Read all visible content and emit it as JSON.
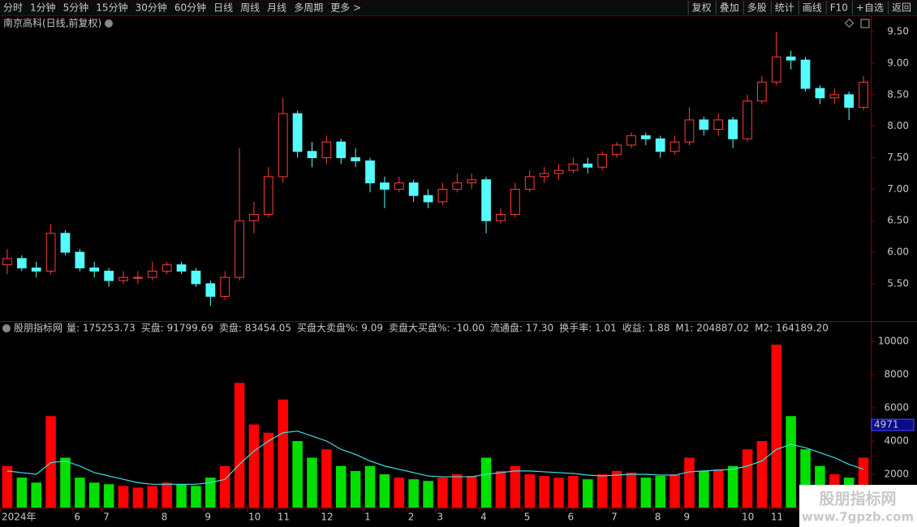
{
  "toolbar": {
    "periods": [
      "分时",
      "1分钟",
      "5分钟",
      "15分钟",
      "30分钟",
      "60分钟",
      "日线",
      "周线",
      "月线",
      "多周期",
      "更多 >"
    ],
    "active_period": 6,
    "tools": [
      "复权",
      "叠加",
      "多股",
      "统计",
      "画线",
      "F10",
      "+自选",
      "返回"
    ]
  },
  "chart_data": [
    {
      "type": "candlestick",
      "title": "南京高科(日线,前复权)",
      "categories": [
        "2024年",
        null,
        null,
        null,
        null,
        "6",
        null,
        "7",
        null,
        null,
        null,
        "8",
        null,
        null,
        "9",
        null,
        null,
        "10",
        null,
        "11",
        null,
        null,
        "12",
        null,
        null,
        "1",
        null,
        null,
        "2",
        null,
        "3",
        null,
        null,
        "4",
        null,
        null,
        "5",
        null,
        null,
        "6",
        null,
        null,
        "7",
        null,
        null,
        "8",
        null,
        "9",
        null,
        null,
        null,
        "10",
        null,
        "11",
        null,
        null,
        null,
        null,
        null,
        null
      ],
      "open": [
        5.8,
        5.9,
        5.75,
        5.7,
        6.3,
        6.0,
        5.75,
        5.7,
        5.55,
        5.6,
        5.6,
        5.7,
        5.8,
        5.7,
        5.5,
        5.3,
        5.6,
        6.5,
        6.6,
        7.2,
        8.2,
        7.6,
        7.5,
        7.75,
        7.5,
        7.45,
        7.1,
        7.0,
        7.1,
        6.9,
        6.8,
        7.0,
        7.1,
        7.15,
        6.5,
        6.6,
        7.0,
        7.2,
        7.25,
        7.3,
        7.4,
        7.35,
        7.55,
        7.7,
        7.85,
        7.8,
        7.6,
        7.75,
        8.1,
        7.95,
        8.1,
        7.8,
        8.4,
        8.7,
        9.1,
        9.05,
        8.6,
        8.45,
        8.5,
        8.3
      ],
      "high": [
        6.05,
        5.95,
        5.85,
        6.45,
        6.35,
        6.05,
        5.85,
        5.75,
        5.7,
        5.7,
        5.85,
        5.85,
        5.85,
        5.75,
        5.55,
        5.7,
        7.65,
        6.8,
        7.35,
        8.45,
        8.25,
        7.75,
        7.85,
        7.8,
        7.65,
        7.5,
        7.2,
        7.2,
        7.15,
        7.0,
        7.1,
        7.25,
        7.25,
        7.2,
        6.7,
        7.1,
        7.3,
        7.35,
        7.4,
        7.5,
        7.5,
        7.6,
        7.75,
        7.9,
        7.9,
        7.85,
        7.85,
        8.3,
        8.15,
        8.2,
        8.15,
        8.5,
        8.8,
        9.5,
        9.2,
        9.1,
        8.65,
        8.6,
        8.55,
        8.8
      ],
      "low": [
        5.65,
        5.7,
        5.6,
        5.65,
        5.95,
        5.7,
        5.6,
        5.45,
        5.5,
        5.5,
        5.55,
        5.65,
        5.65,
        5.45,
        5.15,
        5.25,
        5.55,
        6.3,
        6.55,
        7.1,
        7.5,
        7.35,
        7.4,
        7.4,
        7.35,
        6.95,
        6.7,
        6.95,
        6.8,
        6.7,
        6.75,
        6.95,
        7.0,
        6.3,
        6.45,
        6.55,
        6.95,
        7.1,
        7.15,
        7.25,
        7.25,
        7.3,
        7.5,
        7.65,
        7.7,
        7.5,
        7.55,
        7.7,
        7.85,
        7.85,
        7.65,
        7.75,
        8.35,
        8.65,
        8.9,
        8.55,
        8.35,
        8.35,
        8.1,
        8.25
      ],
      "close": [
        5.9,
        5.75,
        5.7,
        6.3,
        6.0,
        5.75,
        5.7,
        5.55,
        5.6,
        5.6,
        5.7,
        5.8,
        5.7,
        5.5,
        5.3,
        5.6,
        6.5,
        6.6,
        7.2,
        8.2,
        7.6,
        7.5,
        7.75,
        7.5,
        7.45,
        7.1,
        7.0,
        7.1,
        6.9,
        6.8,
        7.0,
        7.1,
        7.15,
        6.5,
        6.6,
        7.0,
        7.2,
        7.25,
        7.3,
        7.4,
        7.35,
        7.55,
        7.7,
        7.85,
        7.8,
        7.6,
        7.75,
        8.1,
        7.95,
        8.1,
        7.8,
        8.4,
        8.7,
        9.1,
        9.05,
        8.6,
        8.45,
        8.5,
        8.3,
        8.7
      ],
      "up_color": "#ff3c3c",
      "down_color": "#54fcfc",
      "ylim": [
        4.92,
        9.54
      ],
      "yticks": [
        {
          "value": 5.5,
          "label": "5.50"
        },
        {
          "value": 6,
          "label": "6.00"
        },
        {
          "value": 6.5,
          "label": "6.50"
        },
        {
          "value": 7,
          "label": "7.00"
        },
        {
          "value": 7.5,
          "label": "7.50"
        },
        {
          "value": 8,
          "label": "8.00"
        },
        {
          "value": 8.5,
          "label": "8.50"
        },
        {
          "value": 9,
          "label": "9.00"
        },
        {
          "value": 9.5,
          "label": "9.50"
        }
      ]
    },
    {
      "type": "bar",
      "title": "股朋指标网",
      "readouts": [
        {
          "text": "量: 175253.73",
          "color": "#ffffff"
        },
        {
          "text": "买盘: 91799.69",
          "color": "#ffff54"
        },
        {
          "text": "卖盘: 83454.05",
          "color": "#ff54ff"
        },
        {
          "text": "买盘大卖盘%: 9.09",
          "color": "#ff3c3c"
        },
        {
          "text": "卖盘大买盘%: -10.00",
          "color": "#00e000"
        },
        {
          "text": "流通盘: 17.30",
          "color": "#3c3cff"
        },
        {
          "text": "换手率: 1.01",
          "color": "#ffffff"
        },
        {
          "text": "收益: 1.88",
          "color": "#ffff54"
        },
        {
          "text": "M1: 204887.02",
          "color": "#ff54ff"
        },
        {
          "text": "M2: 164189.20",
          "color": "#54fcfc"
        }
      ],
      "values": [
        2500,
        1800,
        1500,
        5500,
        3000,
        1800,
        1500,
        1400,
        1300,
        1200,
        1300,
        1500,
        1400,
        1300,
        1800,
        2500,
        7500,
        5000,
        4500,
        6500,
        4000,
        3000,
        3500,
        2500,
        2200,
        2500,
        2000,
        1800,
        1700,
        1600,
        1800,
        2000,
        1900,
        3000,
        2200,
        2500,
        2000,
        1900,
        1800,
        1900,
        1700,
        2000,
        2200,
        2100,
        1800,
        1900,
        2000,
        3000,
        2200,
        2300,
        2500,
        3500,
        4000,
        9800,
        5500,
        3500,
        2500,
        2000,
        1800,
        3000
      ],
      "line": {
        "color": "#40e0e0",
        "values": [
          2200,
          2100,
          2000,
          2700,
          2800,
          2500,
          2100,
          1900,
          1700,
          1500,
          1400,
          1400,
          1400,
          1400,
          1500,
          1700,
          2600,
          3400,
          4000,
          4500,
          4600,
          4300,
          4000,
          3500,
          3200,
          2800,
          2500,
          2300,
          2100,
          1900,
          1850,
          1850,
          1850,
          2000,
          2100,
          2200,
          2200,
          2150,
          2100,
          2050,
          1950,
          1900,
          1950,
          2000,
          2000,
          1950,
          1950,
          2150,
          2200,
          2250,
          2300,
          2500,
          2800,
          3500,
          3800,
          3600,
          3300,
          3000,
          2600,
          2300
        ]
      },
      "up_color": "#ff0000",
      "down_color": "#00e000",
      "ylim": [
        0,
        11170
      ],
      "yticks": [
        2000,
        4000,
        6000,
        8000,
        10000
      ],
      "cursor": {
        "value": 4971,
        "label": "4971"
      }
    }
  ],
  "watermark": {
    "name": "股朋指标网",
    "url": "www.7gpzb.com"
  }
}
